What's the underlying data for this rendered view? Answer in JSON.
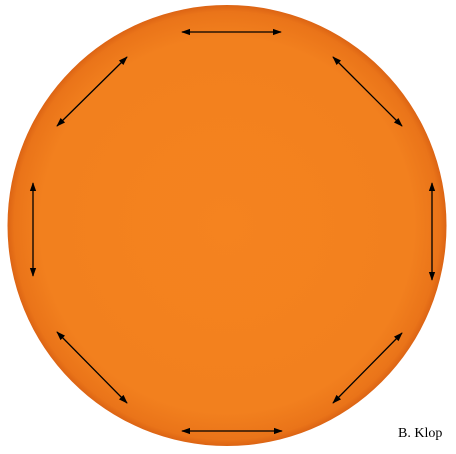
{
  "credit": "B. Klop"
}
